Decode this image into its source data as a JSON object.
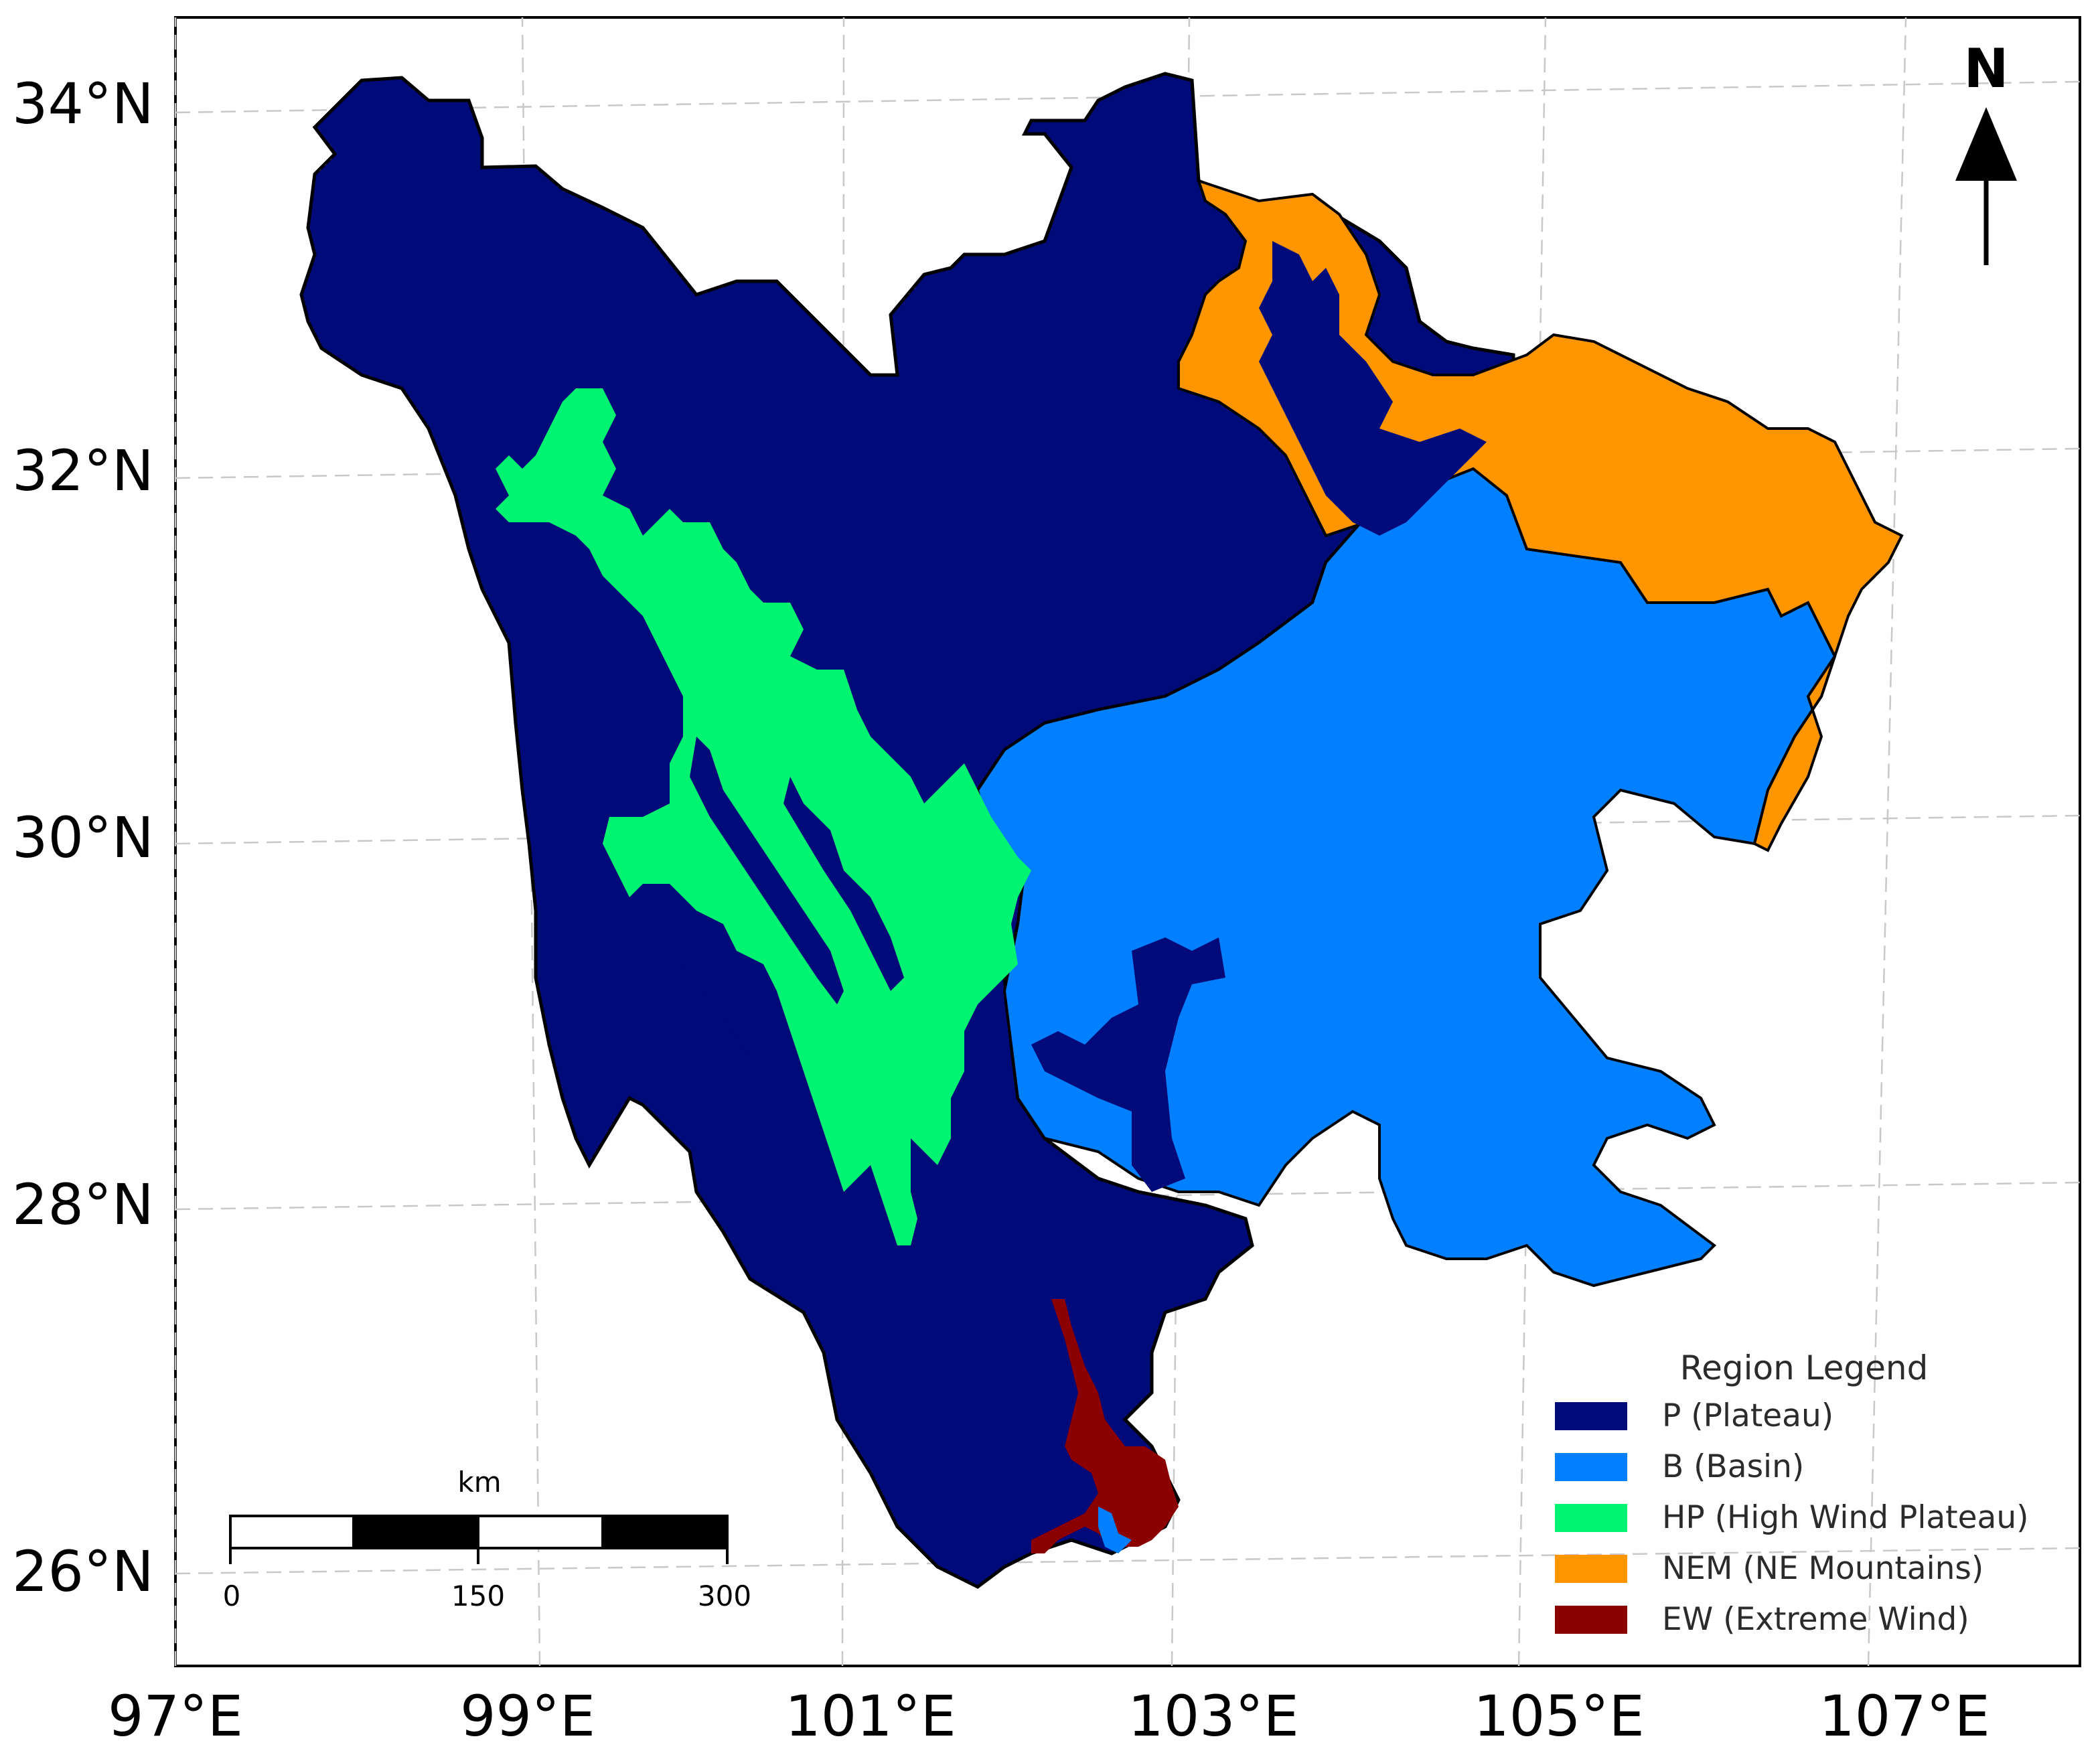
{
  "lat_labels": [
    "34°N",
    "32°N",
    "30°N",
    "28°N",
    "26°N"
  ],
  "lon_labels": [
    "97°E",
    "99°E",
    "101°E",
    "103°E",
    "105°E",
    "107°E"
  ],
  "north_arrow": {
    "label": "N",
    "icon": "north-arrow-icon"
  },
  "scale_bar": {
    "unit": "km",
    "ticks": [
      "0",
      "150",
      "300"
    ]
  },
  "legend": {
    "title": "Region Legend",
    "items": [
      {
        "label": "P (Plateau)",
        "color": "#000a78"
      },
      {
        "label": "B (Basin)",
        "color": "#0080ff"
      },
      {
        "label": "HP (High Wind Plateau)",
        "color": "#00f472"
      },
      {
        "label": "NEM (NE Mountains)",
        "color": "#ff9500"
      },
      {
        "label": "EW (Extreme Wind)",
        "color": "#8b0000"
      }
    ]
  },
  "region_colors": {
    "plateau": "#000a78",
    "basin": "#0080ff",
    "high_wind_plateau": "#00f472",
    "ne_mountains": "#ff9500",
    "extreme_wind": "#8b0000"
  }
}
